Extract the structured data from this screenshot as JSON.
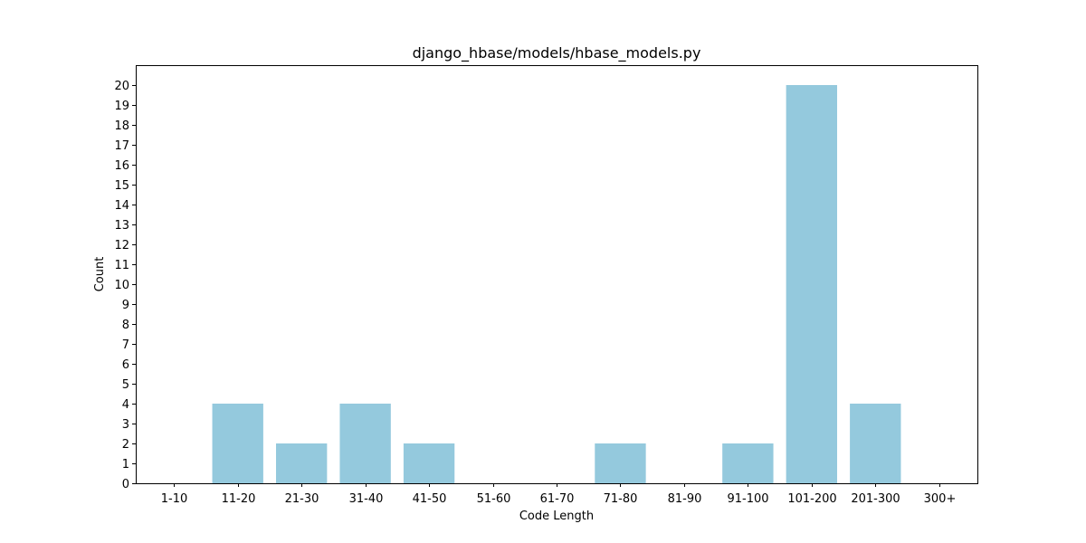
{
  "chart_data": {
    "type": "bar",
    "title": "django_hbase/models/hbase_models.py",
    "xlabel": "Code Length",
    "ylabel": "Count",
    "categories": [
      "1-10",
      "11-20",
      "21-30",
      "31-40",
      "41-50",
      "51-60",
      "61-70",
      "71-80",
      "81-90",
      "91-100",
      "101-200",
      "201-300",
      "300+"
    ],
    "values": [
      0,
      4,
      2,
      4,
      2,
      0,
      0,
      2,
      0,
      2,
      20,
      4,
      0
    ],
    "ylim": [
      0,
      21
    ],
    "yticks": [
      0,
      1,
      2,
      3,
      4,
      5,
      6,
      7,
      8,
      9,
      10,
      11,
      12,
      13,
      14,
      15,
      16,
      17,
      18,
      19,
      20
    ],
    "bar_color": "#94c9dd",
    "grid": false
  }
}
